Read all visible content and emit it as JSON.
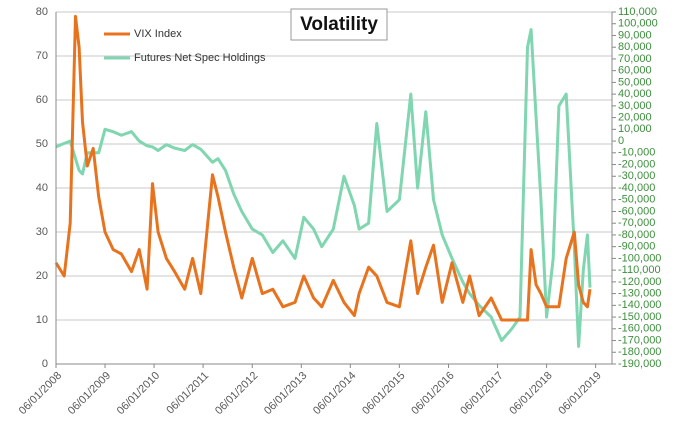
{
  "chart_data": {
    "type": "line",
    "title": "Volatility",
    "x": [
      "06/01/2008",
      "08/01/2008",
      "09/15/2008",
      "10/24/2008",
      "11/20/2008",
      "12/15/2008",
      "01/20/2009",
      "03/05/2009",
      "04/15/2009",
      "06/01/2009",
      "08/01/2009",
      "10/01/2009",
      "12/15/2009",
      "02/10/2010",
      "04/10/2010",
      "05/20/2010",
      "07/01/2010",
      "09/01/2010",
      "11/01/2010",
      "01/15/2011",
      "03/15/2011",
      "05/15/2011",
      "08/10/2011",
      "09/20/2011",
      "11/15/2011",
      "01/15/2012",
      "03/15/2012",
      "06/01/2012",
      "08/15/2012",
      "11/01/2012",
      "01/15/2013",
      "04/15/2013",
      "06/20/2013",
      "09/01/2013",
      "11/01/2013",
      "01/25/2014",
      "04/15/2014",
      "07/01/2014",
      "08/05/2014",
      "10/15/2014",
      "12/15/2014",
      "03/01/2015",
      "06/01/2015",
      "08/25/2015",
      "10/15/2015",
      "12/15/2015",
      "02/10/2016",
      "04/15/2016",
      "06/27/2016",
      "09/15/2016",
      "11/05/2016",
      "01/15/2017",
      "04/15/2017",
      "07/01/2017",
      "09/15/2017",
      "11/15/2017",
      "01/10/2018",
      "02/06/2018",
      "03/15/2018",
      "04/20/2018",
      "06/01/2018",
      "07/20/2018",
      "09/01/2018",
      "10/25/2018",
      "12/24/2018",
      "01/25/2019",
      "03/01/2019",
      "04/01/2019",
      "04/20/2019"
    ],
    "series": [
      {
        "name": "VIX Index",
        "color": "#e8731e",
        "axis": "y",
        "values": [
          23,
          20,
          32,
          79,
          72,
          55,
          45,
          49,
          38,
          30,
          26,
          25,
          21,
          26,
          17,
          41,
          30,
          24,
          21,
          17,
          24,
          16,
          43,
          38,
          30,
          22,
          15,
          24,
          16,
          17,
          13,
          14,
          20,
          15,
          13,
          19,
          14,
          11,
          16,
          22,
          20,
          14,
          13,
          28,
          16,
          22,
          27,
          14,
          23,
          14,
          20,
          11,
          15,
          10,
          10,
          10,
          10,
          26,
          18,
          16,
          13,
          13,
          13,
          24,
          30,
          18,
          14,
          13,
          17
        ]
      },
      {
        "name": "Futures Net Spec Holdings",
        "color": "#7fd6b0",
        "axis": "y2",
        "values": [
          -5000,
          -2000,
          0,
          -15000,
          -25000,
          -28000,
          -10000,
          -10000,
          -10000,
          10000,
          8000,
          5000,
          8000,
          0,
          -4000,
          -5000,
          -8000,
          -3000,
          -6000,
          -8000,
          -3000,
          -7000,
          -18000,
          -15000,
          -25000,
          -45000,
          -60000,
          -75000,
          -80000,
          -95000,
          -85000,
          -100000,
          -65000,
          -75000,
          -90000,
          -75000,
          -30000,
          -55000,
          -75000,
          -70000,
          15000,
          -60000,
          -50000,
          40000,
          -40000,
          25000,
          -50000,
          -80000,
          -100000,
          -120000,
          -130000,
          -140000,
          -150000,
          -170000,
          -160000,
          -150000,
          80000,
          95000,
          20000,
          -50000,
          -150000,
          -100000,
          30000,
          40000,
          -90000,
          -175000,
          -110000,
          -80000,
          -125000
        ]
      }
    ],
    "xlim": [
      "06/01/2008",
      "10/01/2019"
    ],
    "xticks": [
      "06/01/2008",
      "06/01/2009",
      "06/01/2010",
      "06/01/2011",
      "06/01/2012",
      "06/01/2013",
      "06/01/2014",
      "06/01/2015",
      "06/01/2016",
      "06/01/2017",
      "06/01/2018",
      "06/01/2019"
    ],
    "ylim": [
      0,
      80
    ],
    "yticks": [
      0,
      10,
      20,
      30,
      40,
      50,
      60,
      70,
      80
    ],
    "y2lim": [
      -190000,
      110000
    ],
    "y2ticks": [
      {
        "value": 110000,
        "label": "110,000"
      },
      {
        "value": 100000,
        "label": "100,000"
      },
      {
        "value": 90000,
        "label": "90,000"
      },
      {
        "value": 80000,
        "label": "80,000"
      },
      {
        "value": 70000,
        "label": "70,000"
      },
      {
        "value": 60000,
        "label": "60,000"
      },
      {
        "value": 50000,
        "label": "50,000"
      },
      {
        "value": 40000,
        "label": "40,000"
      },
      {
        "value": 30000,
        "label": "30,000"
      },
      {
        "value": 20000,
        "label": "20,000"
      },
      {
        "value": 10000,
        "label": "10,000"
      },
      0,
      {
        "value": -10000,
        "label": "-10,000"
      },
      {
        "value": -20000,
        "label": "-20,000"
      },
      {
        "value": -30000,
        "label": "-30,000"
      },
      {
        "value": -40000,
        "label": "-40,000"
      },
      {
        "value": -50000,
        "label": "-50,000"
      },
      {
        "value": -60000,
        "label": "-60,000"
      },
      {
        "value": -70000,
        "label": "-70,000"
      },
      {
        "value": -80000,
        "label": "-80,000"
      },
      {
        "value": -90000,
        "label": "-90,000"
      },
      {
        "value": -100000,
        "label": "-100,000"
      },
      {
        "value": -110000,
        "label": "-110,000"
      },
      {
        "value": -120000,
        "label": "-120,000"
      },
      {
        "value": -130000,
        "label": "-130,000"
      },
      {
        "value": -140000,
        "label": "-140,000"
      },
      {
        "value": -150000,
        "label": "-150,000"
      },
      {
        "value": -160000,
        "label": "-160,000"
      },
      {
        "value": -170000,
        "label": "-170,000"
      },
      {
        "value": -180000,
        "label": "-180,000"
      },
      {
        "value": -190000,
        "label": "-190,000"
      }
    ],
    "grid": true,
    "legend": "top-left"
  }
}
